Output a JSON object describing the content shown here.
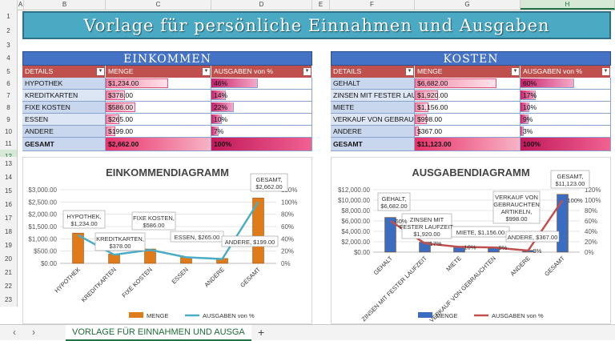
{
  "sheet": {
    "columns": [
      "A",
      "B",
      "C",
      "D",
      "E",
      "F",
      "G",
      "H"
    ],
    "selected_column": "H",
    "rows": [
      "1",
      "2",
      "3",
      "4",
      "5",
      "6",
      "7",
      "8",
      "9",
      "10",
      "11",
      "12",
      "13",
      "14",
      "15",
      "16",
      "17",
      "18",
      "19",
      "20",
      "21",
      "22",
      "23"
    ],
    "selected_row": "12",
    "tab_label": "VORLAGE FÜR EINNAHMEN UND AUSGA",
    "nav_prev": "‹",
    "nav_next": "›",
    "add_sheet": "+"
  },
  "title": "Vorlage für persönliche Einnahmen und Ausgaben",
  "income": {
    "caption": "EINKOMMEN",
    "headers": {
      "details": "DETAILS",
      "amount": "MENGE",
      "percent": "AUSGABEN von %"
    },
    "rows": [
      {
        "label": "HYPOTHEK",
        "amount": "$1,234.00",
        "percent": "46%",
        "share": 0.46
      },
      {
        "label": "KREDITKARTEN",
        "amount": "$378.00",
        "percent": "14%",
        "share": 0.14
      },
      {
        "label": "FIXE KOSTEN",
        "amount": "$586.00",
        "percent": "22%",
        "share": 0.22
      },
      {
        "label": "ESSEN",
        "amount": "$265.00",
        "percent": "10%",
        "share": 0.1
      },
      {
        "label": "ANDERE",
        "amount": "$199.00",
        "percent": "7%",
        "share": 0.07
      }
    ],
    "total": {
      "label": "GESAMT",
      "amount": "$2,662.00",
      "percent": "100%"
    }
  },
  "costs": {
    "caption": "KOSTEN",
    "headers": {
      "details": "DETAILS",
      "amount": "MENGE",
      "percent": "AUSGABEN von %"
    },
    "rows": [
      {
        "label": "GEHALT",
        "amount": "$6,682.00",
        "percent": "60%",
        "share": 0.6
      },
      {
        "label": "ZINSEN MIT FESTER LAUFZEIT",
        "amount": "$1,920.00",
        "percent": "17%",
        "share": 0.17
      },
      {
        "label": "MIETE",
        "amount": "$1,156.00",
        "percent": "10%",
        "share": 0.1
      },
      {
        "label": "VERKAUF VON GEBRAUCHTEN ARTIKELN",
        "amount": "$998.00",
        "percent": "9%",
        "share": 0.09
      },
      {
        "label": "ANDERE",
        "amount": "$367.00",
        "percent": "3%",
        "share": 0.03
      }
    ],
    "total": {
      "label": "GESAMT",
      "amount": "$11,123.00",
      "percent": "100%"
    }
  },
  "colors": {
    "bar_income": "#e07b1a",
    "line_income": "#4bacc6",
    "bar_costs": "#3a6cc0",
    "line_costs": "#c0504d"
  },
  "chart_data": [
    {
      "type": "bar",
      "title": "EINKOMMENDIAGRAMM",
      "categories": [
        "HYPOTHEK",
        "KREDITKARTEN",
        "FIXE KOSTEN",
        "ESSEN",
        "ANDERE",
        "GESAMT"
      ],
      "series": [
        {
          "name": "MENGE",
          "values": [
            1234,
            378,
            586,
            265,
            199,
            2662
          ],
          "axis": "left"
        },
        {
          "name": "AUSGABEN von %",
          "values": [
            46,
            14,
            22,
            10,
            7,
            100
          ],
          "axis": "right",
          "kind": "line"
        }
      ],
      "ylim": [
        0,
        3000
      ],
      "yticks": [
        "$0.00",
        "$500.00",
        "$1,000.00",
        "$1,500.00",
        "$2,000.00",
        "$2,500.00",
        "$3,000.00"
      ],
      "y2lim": [
        0,
        120
      ],
      "y2ticks": [
        "0%",
        "20%",
        "40%",
        "60%",
        "80%",
        "100%",
        "120%"
      ],
      "data_labels": [
        "HYPOTHEK, $1,234.00",
        "KREDITKARTEN, $378.00",
        "FIXE KOSTEN, $586.00",
        "ESSEN, $265.00",
        "ANDERE, $199.00",
        "GESAMT, $2,662.00"
      ],
      "legend": "bottom"
    },
    {
      "type": "bar",
      "title": "AUSGABENDIAGRAMM",
      "categories": [
        "GEHALT",
        "ZINSEN MIT FESTER LAUFZEIT",
        "MIETE",
        "VERKAUF VON GEBRAUCHTEN",
        "ANDERE",
        "GESAMT"
      ],
      "series": [
        {
          "name": "MENGE",
          "values": [
            6682,
            1920,
            1156,
            998,
            367,
            11123
          ],
          "axis": "left"
        },
        {
          "name": "AUSGABEN von %",
          "values": [
            60,
            17,
            10,
            9,
            3,
            100
          ],
          "axis": "right",
          "kind": "line"
        }
      ],
      "ylim": [
        0,
        12000
      ],
      "yticks": [
        "$0.00",
        "$2,000.00",
        "$4,000.00",
        "$6,000.00",
        "$8,000.00",
        "$10,000.00",
        "$12,000.00"
      ],
      "y2lim": [
        0,
        120
      ],
      "y2ticks": [
        "0%",
        "20%",
        "40%",
        "60%",
        "80%",
        "100%",
        "120%"
      ],
      "data_labels": [
        "GEHALT, $6,682.00",
        "ZINSEN MIT FESTER LAUFZEIT, $1,920.00",
        "MIETE, $1,156.00",
        "VERKAUF VON GEBRAUCHTEN ARTIKELN, $998.00",
        "ANDERE, $367.00",
        "GESAMT, $11,123.00"
      ],
      "pct_labels": [
        "60%",
        "17%",
        "10%",
        "9%",
        "3%",
        "100%"
      ],
      "legend": "bottom"
    }
  ]
}
